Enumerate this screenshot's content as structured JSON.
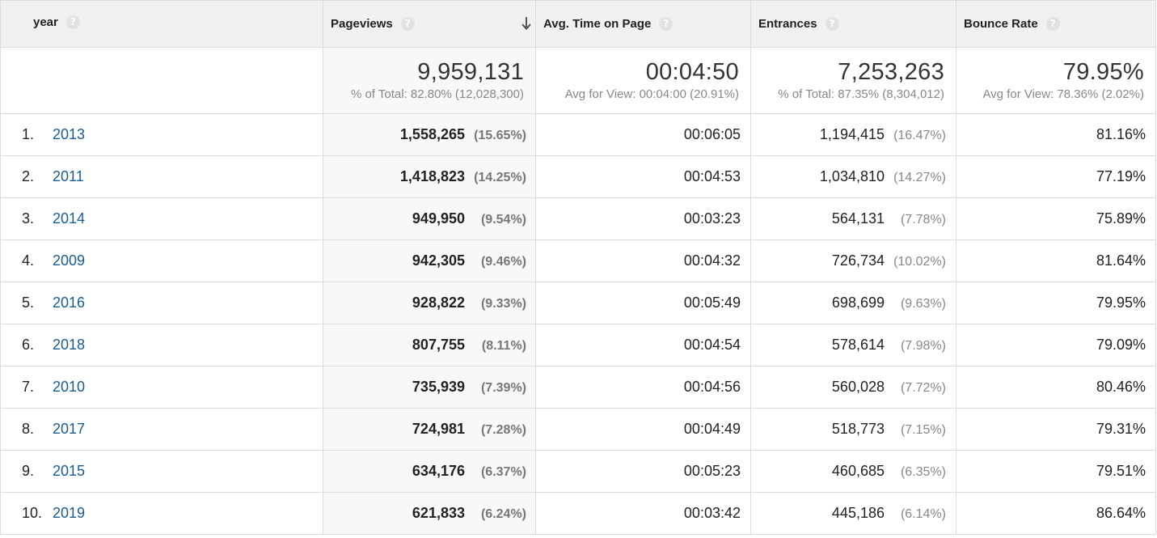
{
  "headers": {
    "year": "year",
    "pageviews": "Pageviews",
    "avg_time": "Avg. Time on Page",
    "entrances": "Entrances",
    "bounce_rate": "Bounce Rate",
    "help_glyph": "?"
  },
  "sort": {
    "column": "Pageviews",
    "direction": "descending"
  },
  "totals": {
    "pageviews": {
      "value": "9,959,131",
      "sub": "% of Total: 82.80% (12,028,300)"
    },
    "avg_time": {
      "value": "00:04:50",
      "sub": "Avg for View: 00:04:00 (20.91%)"
    },
    "entrances": {
      "value": "7,253,263",
      "sub": "% of Total: 87.35% (8,304,012)"
    },
    "bounce_rate": {
      "value": "79.95%",
      "sub": "Avg for View: 78.36% (2.02%)"
    }
  },
  "rows": [
    {
      "rank": "1.",
      "year": "2013",
      "pageviews": "1,558,265",
      "pv_pct": "(15.65%)",
      "avg_time": "00:06:05",
      "entrances": "1,194,415",
      "ent_pct": "(16.47%)",
      "bounce_rate": "81.16%"
    },
    {
      "rank": "2.",
      "year": "2011",
      "pageviews": "1,418,823",
      "pv_pct": "(14.25%)",
      "avg_time": "00:04:53",
      "entrances": "1,034,810",
      "ent_pct": "(14.27%)",
      "bounce_rate": "77.19%"
    },
    {
      "rank": "3.",
      "year": "2014",
      "pageviews": "949,950",
      "pv_pct": "(9.54%)",
      "avg_time": "00:03:23",
      "entrances": "564,131",
      "ent_pct": "(7.78%)",
      "bounce_rate": "75.89%"
    },
    {
      "rank": "4.",
      "year": "2009",
      "pageviews": "942,305",
      "pv_pct": "(9.46%)",
      "avg_time": "00:04:32",
      "entrances": "726,734",
      "ent_pct": "(10.02%)",
      "bounce_rate": "81.64%"
    },
    {
      "rank": "5.",
      "year": "2016",
      "pageviews": "928,822",
      "pv_pct": "(9.33%)",
      "avg_time": "00:05:49",
      "entrances": "698,699",
      "ent_pct": "(9.63%)",
      "bounce_rate": "79.95%"
    },
    {
      "rank": "6.",
      "year": "2018",
      "pageviews": "807,755",
      "pv_pct": "(8.11%)",
      "avg_time": "00:04:54",
      "entrances": "578,614",
      "ent_pct": "(7.98%)",
      "bounce_rate": "79.09%"
    },
    {
      "rank": "7.",
      "year": "2010",
      "pageviews": "735,939",
      "pv_pct": "(7.39%)",
      "avg_time": "00:04:56",
      "entrances": "560,028",
      "ent_pct": "(7.72%)",
      "bounce_rate": "80.46%"
    },
    {
      "rank": "8.",
      "year": "2017",
      "pageviews": "724,981",
      "pv_pct": "(7.28%)",
      "avg_time": "00:04:49",
      "entrances": "518,773",
      "ent_pct": "(7.15%)",
      "bounce_rate": "79.31%"
    },
    {
      "rank": "9.",
      "year": "2015",
      "pageviews": "634,176",
      "pv_pct": "(6.37%)",
      "avg_time": "00:05:23",
      "entrances": "460,685",
      "ent_pct": "(6.35%)",
      "bounce_rate": "79.51%"
    },
    {
      "rank": "10.",
      "year": "2019",
      "pageviews": "621,833",
      "pv_pct": "(6.24%)",
      "avg_time": "00:03:42",
      "entrances": "445,186",
      "ent_pct": "(6.14%)",
      "bounce_rate": "86.64%"
    }
  ],
  "colors": {
    "link": "#1a5c96",
    "header_bg": "#f1f1f1",
    "sorted_column_bg": "#f8f8f8",
    "border": "#dcdcdc",
    "muted_text": "#888888"
  },
  "icons": {
    "help": "question-circle-icon",
    "sort": "arrow-down-icon"
  }
}
